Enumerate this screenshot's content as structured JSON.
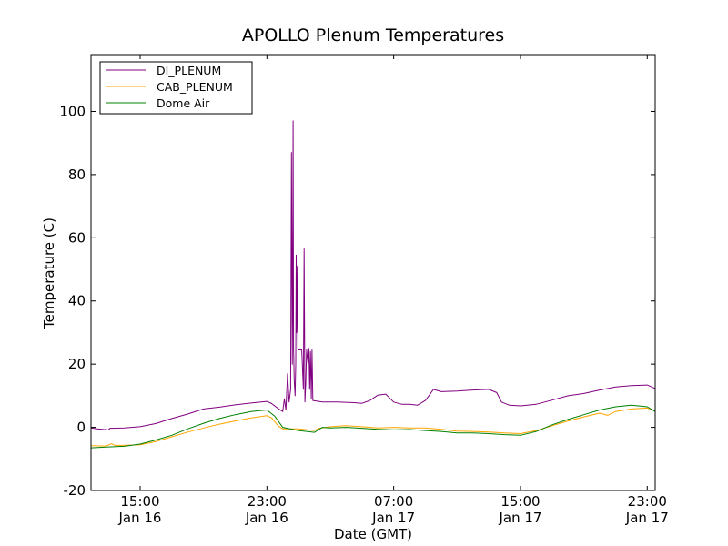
{
  "chart_data": {
    "type": "line",
    "title": "APOLLO Plenum Temperatures",
    "xlabel": "Date (GMT)",
    "ylabel": "Temperature (C)",
    "ylim": [
      -20,
      118
    ],
    "xlim_hours": [
      11.9,
      47.5
    ],
    "grid": false,
    "legend_position": "top-left",
    "y_ticks": [
      {
        "value": -20,
        "label": "-20"
      },
      {
        "value": 0,
        "label": "0"
      },
      {
        "value": 20,
        "label": "20"
      },
      {
        "value": 40,
        "label": "40"
      },
      {
        "value": 60,
        "label": "60"
      },
      {
        "value": 80,
        "label": "80"
      },
      {
        "value": 100,
        "label": "100"
      }
    ],
    "x_ticks": [
      {
        "hour": 15,
        "time": "15:00",
        "date": "Jan 16"
      },
      {
        "hour": 23,
        "time": "23:00",
        "date": "Jan 16"
      },
      {
        "hour": 31,
        "time": "07:00",
        "date": "Jan 17"
      },
      {
        "hour": 39,
        "time": "15:00",
        "date": "Jan 17"
      },
      {
        "hour": 47,
        "time": "23:00",
        "date": "Jan 17"
      }
    ],
    "series": [
      {
        "name": "DI_PLENUM",
        "color": "#800080",
        "points": [
          [
            11.9,
            -0.2
          ],
          [
            12.3,
            -0.5
          ],
          [
            13.0,
            -0.8
          ],
          [
            13.1,
            -0.3
          ],
          [
            14.0,
            -0.2
          ],
          [
            15.0,
            0.2
          ],
          [
            16.0,
            1.2
          ],
          [
            17.0,
            2.8
          ],
          [
            18.0,
            4.2
          ],
          [
            19.0,
            5.8
          ],
          [
            20.0,
            6.4
          ],
          [
            21.0,
            7.1
          ],
          [
            22.0,
            7.7
          ],
          [
            23.0,
            8.2
          ],
          [
            23.3,
            7.5
          ],
          [
            23.7,
            6.0
          ],
          [
            24.0,
            5.0
          ],
          [
            24.1,
            9.0
          ],
          [
            24.2,
            5.5
          ],
          [
            24.3,
            17.0
          ],
          [
            24.4,
            8.0
          ],
          [
            24.5,
            12.0
          ],
          [
            24.55,
            87.0
          ],
          [
            24.6,
            20.0
          ],
          [
            24.62,
            34.0
          ],
          [
            24.65,
            97.0
          ],
          [
            24.68,
            25.0
          ],
          [
            24.72,
            15.0
          ],
          [
            24.78,
            10.0
          ],
          [
            24.82,
            20.0
          ],
          [
            24.85,
            54.5
          ],
          [
            24.88,
            30.0
          ],
          [
            24.92,
            51.0
          ],
          [
            24.96,
            25.0
          ],
          [
            25.0,
            24.5
          ],
          [
            25.2,
            24.5
          ],
          [
            25.3,
            12.0
          ],
          [
            25.35,
            56.5
          ],
          [
            25.4,
            8.0
          ],
          [
            25.45,
            14.0
          ],
          [
            25.5,
            24.5
          ],
          [
            25.6,
            20.0
          ],
          [
            25.65,
            25.0
          ],
          [
            25.7,
            12.0
          ],
          [
            25.75,
            24.0
          ],
          [
            25.8,
            9.0
          ],
          [
            25.85,
            24.5
          ],
          [
            25.9,
            8.5
          ],
          [
            26.5,
            8.0
          ],
          [
            27.5,
            8.0
          ],
          [
            28.5,
            7.8
          ],
          [
            29.0,
            7.6
          ],
          [
            29.5,
            8.5
          ],
          [
            30.0,
            10.2
          ],
          [
            30.5,
            10.5
          ],
          [
            31.0,
            8.0
          ],
          [
            31.5,
            7.3
          ],
          [
            32.0,
            7.3
          ],
          [
            32.5,
            7.0
          ],
          [
            33.0,
            8.5
          ],
          [
            33.3,
            10.5
          ],
          [
            33.5,
            12.0
          ],
          [
            34.0,
            11.3
          ],
          [
            35.0,
            11.5
          ],
          [
            36.0,
            11.8
          ],
          [
            37.0,
            12.0
          ],
          [
            37.5,
            11.0
          ],
          [
            37.8,
            8.0
          ],
          [
            38.3,
            7.0
          ],
          [
            39.0,
            6.8
          ],
          [
            40.0,
            7.3
          ],
          [
            41.0,
            8.6
          ],
          [
            42.0,
            10.0
          ],
          [
            43.0,
            10.7
          ],
          [
            44.0,
            11.8
          ],
          [
            45.0,
            12.8
          ],
          [
            46.0,
            13.2
          ],
          [
            47.0,
            13.4
          ],
          [
            47.5,
            12.3
          ]
        ]
      },
      {
        "name": "CAB_PLENUM",
        "color": "#ffa500",
        "points": [
          [
            11.9,
            -5.8
          ],
          [
            12.8,
            -5.9
          ],
          [
            13.0,
            -5.6
          ],
          [
            13.2,
            -5.2
          ],
          [
            13.4,
            -5.7
          ],
          [
            14.0,
            -5.7
          ],
          [
            15.0,
            -5.5
          ],
          [
            16.0,
            -4.5
          ],
          [
            17.0,
            -3.0
          ],
          [
            18.0,
            -1.5
          ],
          [
            19.0,
            -0.2
          ],
          [
            20.0,
            1.0
          ],
          [
            21.0,
            2.0
          ],
          [
            22.0,
            3.0
          ],
          [
            23.0,
            3.7
          ],
          [
            23.3,
            3.0
          ],
          [
            23.7,
            0.5
          ],
          [
            24.0,
            -0.5
          ],
          [
            25.0,
            -0.5
          ],
          [
            26.0,
            -1.0
          ],
          [
            26.3,
            -0.3
          ],
          [
            27.0,
            0.2
          ],
          [
            28.0,
            0.5
          ],
          [
            29.0,
            0.2
          ],
          [
            30.0,
            -0.2
          ],
          [
            31.0,
            0.0
          ],
          [
            32.0,
            -0.2
          ],
          [
            33.0,
            -0.2
          ],
          [
            34.0,
            -0.6
          ],
          [
            35.0,
            -1.2
          ],
          [
            36.0,
            -1.3
          ],
          [
            37.0,
            -1.5
          ],
          [
            38.0,
            -1.8
          ],
          [
            39.0,
            -2.0
          ],
          [
            40.0,
            -1.0
          ],
          [
            41.0,
            0.5
          ],
          [
            42.0,
            2.0
          ],
          [
            43.0,
            3.3
          ],
          [
            44.0,
            4.5
          ],
          [
            44.5,
            3.8
          ],
          [
            45.0,
            5.0
          ],
          [
            46.0,
            5.8
          ],
          [
            47.0,
            6.1
          ],
          [
            47.5,
            5.2
          ]
        ]
      },
      {
        "name": "Dome Air",
        "color": "#008000",
        "points": [
          [
            11.9,
            -6.5
          ],
          [
            13.0,
            -6.2
          ],
          [
            14.0,
            -6.0
          ],
          [
            15.0,
            -5.3
          ],
          [
            16.0,
            -4.0
          ],
          [
            17.0,
            -2.5
          ],
          [
            18.0,
            -0.5
          ],
          [
            19.0,
            1.3
          ],
          [
            20.0,
            2.8
          ],
          [
            21.0,
            4.0
          ],
          [
            22.0,
            5.0
          ],
          [
            23.0,
            5.5
          ],
          [
            23.5,
            3.5
          ],
          [
            24.0,
            0.0
          ],
          [
            25.0,
            -1.0
          ],
          [
            26.0,
            -1.6
          ],
          [
            26.5,
            0.0
          ],
          [
            27.0,
            -0.2
          ],
          [
            28.0,
            0.0
          ],
          [
            29.0,
            -0.3
          ],
          [
            30.0,
            -0.6
          ],
          [
            31.0,
            -0.8
          ],
          [
            32.0,
            -0.7
          ],
          [
            33.0,
            -1.0
          ],
          [
            34.0,
            -1.3
          ],
          [
            35.0,
            -1.8
          ],
          [
            36.0,
            -1.8
          ],
          [
            37.0,
            -2.0
          ],
          [
            38.0,
            -2.3
          ],
          [
            39.0,
            -2.5
          ],
          [
            40.0,
            -1.3
          ],
          [
            41.0,
            0.8
          ],
          [
            42.0,
            2.5
          ],
          [
            43.0,
            4.0
          ],
          [
            44.0,
            5.5
          ],
          [
            45.0,
            6.5
          ],
          [
            46.0,
            7.0
          ],
          [
            47.0,
            6.5
          ],
          [
            47.5,
            5.0
          ]
        ]
      }
    ]
  }
}
